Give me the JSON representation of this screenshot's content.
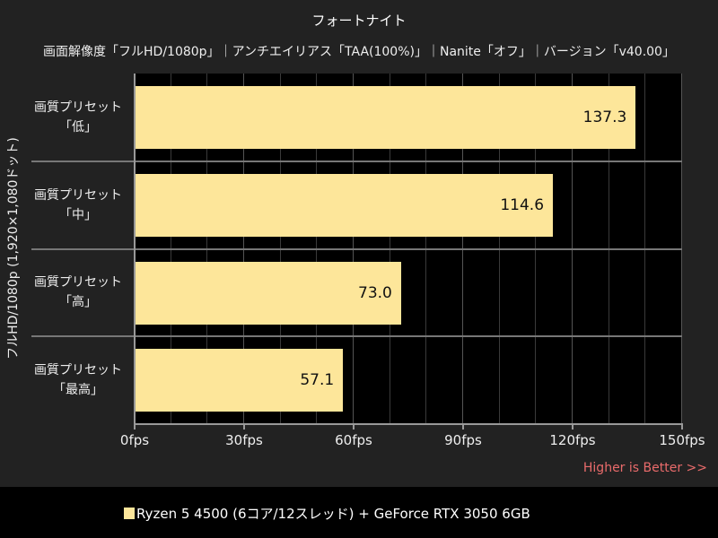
{
  "chart_data": {
    "type": "bar",
    "orientation": "horizontal",
    "title": "フォートナイト",
    "subtitle": "画面解像度「フルHD/1080p」｜アンチエイリアス「TAA(100%)」｜Nanite「オフ」｜バージョン「v40.00」",
    "ylabel": "フルHD/1080p (1,920×1,080ドット)",
    "xlabel": "",
    "categories": [
      "画質プリセット「低」",
      "画質プリセット「中」",
      "画質プリセット「高」",
      "画質プリセット「最高」"
    ],
    "category_lines": [
      [
        "画質プリセット",
        "「低」"
      ],
      [
        "画質プリセット",
        "「中」"
      ],
      [
        "画質プリセット",
        "「高」"
      ],
      [
        "画質プリセット",
        "「最高」"
      ]
    ],
    "series": [
      {
        "name": "Ryzen 5 4500 (6コア/12スレッド) + GeForce RTX 3050 6GB",
        "color": "#fde69a",
        "values": [
          137.3,
          114.6,
          73.0,
          57.1
        ]
      }
    ],
    "value_labels": [
      "137.3",
      "114.6",
      "73.0",
      "57.1"
    ],
    "xlim": [
      0,
      150
    ],
    "x_ticks": [
      0,
      30,
      60,
      90,
      120,
      150
    ],
    "x_tick_labels": [
      "0fps",
      "30fps",
      "60fps",
      "90fps",
      "120fps",
      "150fps"
    ],
    "minor_grid_step": 10,
    "grid": true,
    "legend_position": "bottom",
    "annotation": "Higher is Better >>"
  },
  "colors": {
    "bar": "#fde69a",
    "annotation": "#e96b6b",
    "panel": "#222222",
    "plot_bg": "#000000"
  }
}
